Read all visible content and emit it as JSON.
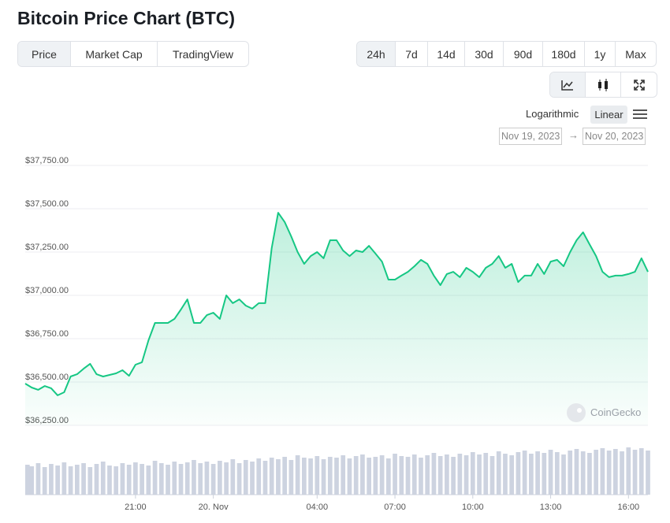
{
  "header": {
    "title": "Bitcoin Price Chart (BTC)"
  },
  "tabs": [
    "Price",
    "Market Cap",
    "TradingView"
  ],
  "ranges": [
    "24h",
    "7d",
    "14d",
    "30d",
    "90d",
    "180d",
    "1y",
    "Max"
  ],
  "scale_options": [
    "Logarithmic",
    "Linear"
  ],
  "date_from": "Nov 19, 2023",
  "date_separator": "→",
  "date_to": "Nov 20, 2023",
  "watermark": "CoinGecko",
  "chart_data": {
    "type": "line",
    "color": "#16c784",
    "x": [
      "2023-11-19T16:45",
      "2023-11-19T17:00",
      "2023-11-19T17:15",
      "2023-11-19T17:30",
      "2023-11-19T17:45",
      "2023-11-19T18:00",
      "2023-11-19T18:15",
      "2023-11-19T18:30",
      "2023-11-19T18:45",
      "2023-11-19T19:00",
      "2023-11-19T19:15",
      "2023-11-19T19:30",
      "2023-11-19T19:45",
      "2023-11-19T20:00",
      "2023-11-19T20:15",
      "2023-11-19T20:30",
      "2023-11-19T20:45",
      "2023-11-19T21:00",
      "2023-11-19T21:15",
      "2023-11-19T21:30",
      "2023-11-19T21:45",
      "2023-11-19T22:00",
      "2023-11-19T22:15",
      "2023-11-19T22:30",
      "2023-11-19T22:45",
      "2023-11-19T23:00",
      "2023-11-19T23:15",
      "2023-11-19T23:30",
      "2023-11-19T23:45",
      "2023-11-20T00:00",
      "2023-11-20T00:15",
      "2023-11-20T00:30",
      "2023-11-20T00:45",
      "2023-11-20T01:00",
      "2023-11-20T01:15",
      "2023-11-20T01:30",
      "2023-11-20T01:45",
      "2023-11-20T02:00",
      "2023-11-20T02:15",
      "2023-11-20T02:30",
      "2023-11-20T02:45",
      "2023-11-20T03:00",
      "2023-11-20T03:15",
      "2023-11-20T03:30",
      "2023-11-20T03:45",
      "2023-11-20T04:00",
      "2023-11-20T04:15",
      "2023-11-20T04:30",
      "2023-11-20T04:45",
      "2023-11-20T05:00",
      "2023-11-20T05:15",
      "2023-11-20T05:30",
      "2023-11-20T05:45",
      "2023-11-20T06:00",
      "2023-11-20T06:15",
      "2023-11-20T06:30",
      "2023-11-20T06:45",
      "2023-11-20T07:00",
      "2023-11-20T07:15",
      "2023-11-20T07:30",
      "2023-11-20T07:45",
      "2023-11-20T08:00",
      "2023-11-20T08:15",
      "2023-11-20T08:30",
      "2023-11-20T08:45",
      "2023-11-20T09:00",
      "2023-11-20T09:15",
      "2023-11-20T09:30",
      "2023-11-20T09:45",
      "2023-11-20T10:00",
      "2023-11-20T10:15",
      "2023-11-20T10:30",
      "2023-11-20T10:45",
      "2023-11-20T11:00",
      "2023-11-20T11:15",
      "2023-11-20T11:30",
      "2023-11-20T11:45",
      "2023-11-20T12:00",
      "2023-11-20T12:15",
      "2023-11-20T12:30",
      "2023-11-20T12:45",
      "2023-11-20T13:00",
      "2023-11-20T13:15",
      "2023-11-20T13:30",
      "2023-11-20T13:45",
      "2023-11-20T14:00",
      "2023-11-20T14:15",
      "2023-11-20T14:30",
      "2023-11-20T14:45",
      "2023-11-20T15:00",
      "2023-11-20T15:15",
      "2023-11-20T15:30",
      "2023-11-20T15:45",
      "2023-11-20T16:00",
      "2023-11-20T16:15",
      "2023-11-20T16:30",
      "2023-11-20T16:45"
    ],
    "values": [
      36491,
      36468,
      36455,
      36477,
      36464,
      36423,
      36441,
      36532,
      36545,
      36577,
      36605,
      36545,
      36532,
      36541,
      36550,
      36568,
      36536,
      36600,
      36614,
      36741,
      36841,
      36841,
      36841,
      36864,
      36918,
      36977,
      36841,
      36841,
      36886,
      36900,
      36864,
      37000,
      36955,
      36977,
      36941,
      36923,
      36955,
      36955,
      37273,
      37477,
      37423,
      37341,
      37250,
      37182,
      37227,
      37250,
      37214,
      37318,
      37318,
      37259,
      37227,
      37259,
      37250,
      37286,
      37241,
      37195,
      37091,
      37091,
      37114,
      37136,
      37168,
      37205,
      37182,
      37114,
      37059,
      37123,
      37136,
      37105,
      37159,
      37136,
      37105,
      37159,
      37182,
      37227,
      37159,
      37182,
      37077,
      37114,
      37114,
      37182,
      37123,
      37195,
      37205,
      37168,
      37250,
      37318,
      37364,
      37295,
      37227,
      37136,
      37105,
      37114,
      37114,
      37123,
      37136,
      37214,
      37136
    ],
    "xlim": [
      "2023-11-19T16:45",
      "2023-11-20T16:45"
    ],
    "xticks": [
      {
        "value": "2023-11-19T21:00",
        "label": "21:00"
      },
      {
        "value": "2023-11-20T00:00",
        "label": "20. Nov"
      },
      {
        "value": "2023-11-20T04:00",
        "label": "04:00"
      },
      {
        "value": "2023-11-20T07:00",
        "label": "07:00"
      },
      {
        "value": "2023-11-20T10:00",
        "label": "10:00"
      },
      {
        "value": "2023-11-20T13:00",
        "label": "13:00"
      },
      {
        "value": "2023-11-20T16:00",
        "label": "16:00"
      }
    ],
    "ylim": [
      36250,
      37750
    ],
    "yticks": [
      {
        "value": 36250,
        "label": "$36,250.00"
      },
      {
        "value": 36500,
        "label": "$36,500.00"
      },
      {
        "value": 36750,
        "label": "$36,750.00"
      },
      {
        "value": 37000,
        "label": "$37,000.00"
      },
      {
        "value": 37250,
        "label": "$37,250.00"
      },
      {
        "value": 37500,
        "label": "$37,500.00"
      },
      {
        "value": 37750,
        "label": "$37,750.00"
      }
    ],
    "grid": true,
    "volume": {
      "color": "#cdd3e0",
      "ylim": [
        0,
        70
      ],
      "values": [
        38,
        36,
        40,
        35,
        39,
        37,
        41,
        36,
        38,
        40,
        35,
        39,
        42,
        37,
        36,
        40,
        38,
        41,
        39,
        37,
        43,
        40,
        38,
        42,
        39,
        41,
        44,
        40,
        42,
        39,
        43,
        41,
        45,
        40,
        44,
        42,
        46,
        43,
        47,
        45,
        48,
        44,
        50,
        47,
        46,
        49,
        45,
        48,
        47,
        50,
        46,
        49,
        51,
        47,
        48,
        50,
        46,
        52,
        49,
        48,
        51,
        47,
        50,
        53,
        49,
        51,
        48,
        52,
        50,
        54,
        51,
        53,
        49,
        55,
        52,
        50,
        54,
        56,
        52,
        55,
        53,
        57,
        54,
        51,
        56,
        58,
        55,
        53,
        57,
        59,
        56,
        58,
        55,
        60,
        57,
        59,
        56
      ]
    }
  }
}
